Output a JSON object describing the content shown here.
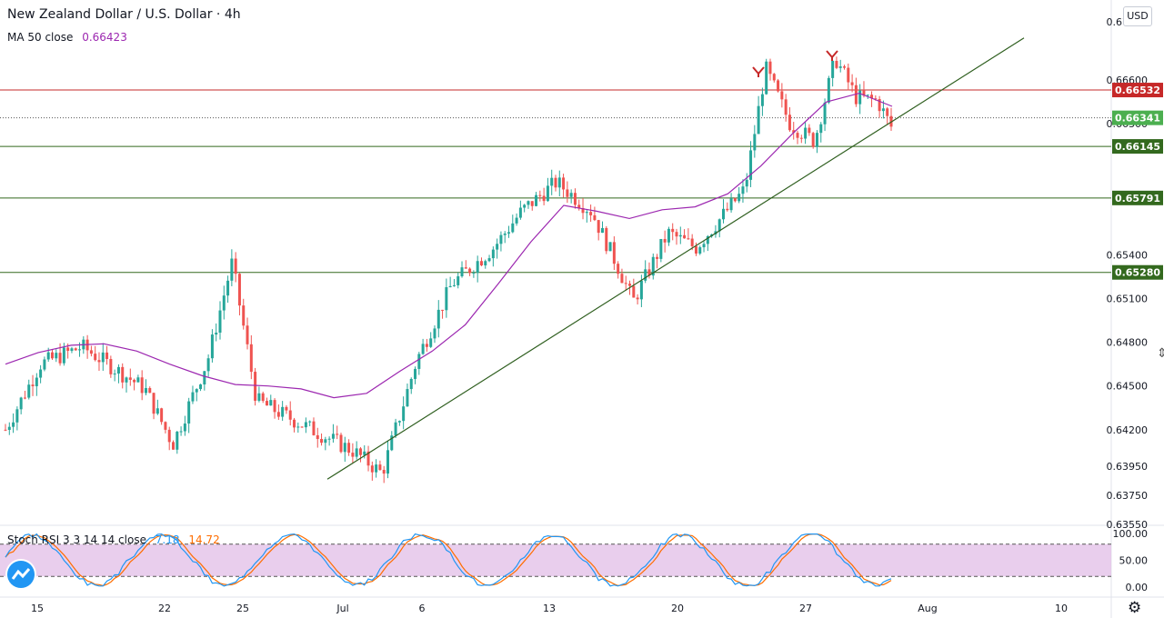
{
  "header": {
    "title": "New Zealand Dollar / U.S. Dollar · 4h",
    "ma_label": "MA 50 close",
    "ma_value": "0.66423",
    "currency_button": "USD"
  },
  "stoch": {
    "label": "Stoch RSI 3 3 14 14 close",
    "k_value": "7.18",
    "d_value": "14.72"
  },
  "colors": {
    "up": "#26a69a",
    "down": "#ef5350",
    "ma": "#9c27b0",
    "stoch_k": "#2196f3",
    "stoch_d": "#ff6d00",
    "band": "#e1bee7",
    "trend": "#2e5e1e",
    "resistance": "#c62828",
    "support": "#33691e",
    "current": "#4caf50"
  },
  "icons": {
    "logo": "tradingview-logo-icon",
    "settings": "gear-icon",
    "resize": "resize-handle-icon"
  },
  "chart_data": [
    {
      "type": "candlestick",
      "title": "New Zealand Dollar / U.S. Dollar · 4h",
      "ylim": [
        0.6355,
        0.6715
      ],
      "price_ticks": [
        "0.67000",
        "0.66600",
        "0.66300",
        "0.65400",
        "0.65100",
        "0.64800",
        "0.64500",
        "0.64200",
        "0.63950",
        "0.63750",
        "0.63550"
      ],
      "date_ticks": [
        "15",
        "22",
        "25",
        "Jul",
        "6",
        "13",
        "20",
        "27",
        "Aug",
        "10"
      ],
      "current_price": "0.66341",
      "horizontal_levels": [
        {
          "value": 0.66532,
          "label": "0.66532",
          "kind": "resistance"
        },
        {
          "value": 0.66145,
          "label": "0.66145",
          "kind": "support"
        },
        {
          "value": 0.65791,
          "label": "0.65791",
          "kind": "support"
        },
        {
          "value": 0.6528,
          "label": "0.65280",
          "kind": "support"
        }
      ],
      "trendline": [
        [
          0.6386,
          0.6689
        ]
      ],
      "top_markers": 2,
      "series": [
        {
          "name": "MA 50 close",
          "values": [
            0.6465,
            0.6473,
            0.6478,
            0.6479,
            0.6474,
            0.6465,
            0.6457,
            0.6451,
            0.645,
            0.6448,
            0.6442,
            0.6445,
            0.646,
            0.6474,
            0.6492,
            0.652,
            0.6549,
            0.6574,
            0.657,
            0.6565,
            0.6571,
            0.6573,
            0.6582,
            0.6601,
            0.6624,
            0.6645,
            0.6651,
            0.6642
          ]
        },
        {
          "name": "Stoch RSI",
          "values": []
        }
      ]
    },
    {
      "type": "line",
      "title": "Stoch RSI 3 3 14 14 close",
      "ylim": [
        0,
        100
      ],
      "ticks": [
        "100.00",
        "50.00",
        "0.00"
      ],
      "band": [
        20,
        80
      ],
      "series": [
        {
          "name": "K",
          "values": []
        },
        {
          "name": "D",
          "values": []
        }
      ]
    }
  ]
}
